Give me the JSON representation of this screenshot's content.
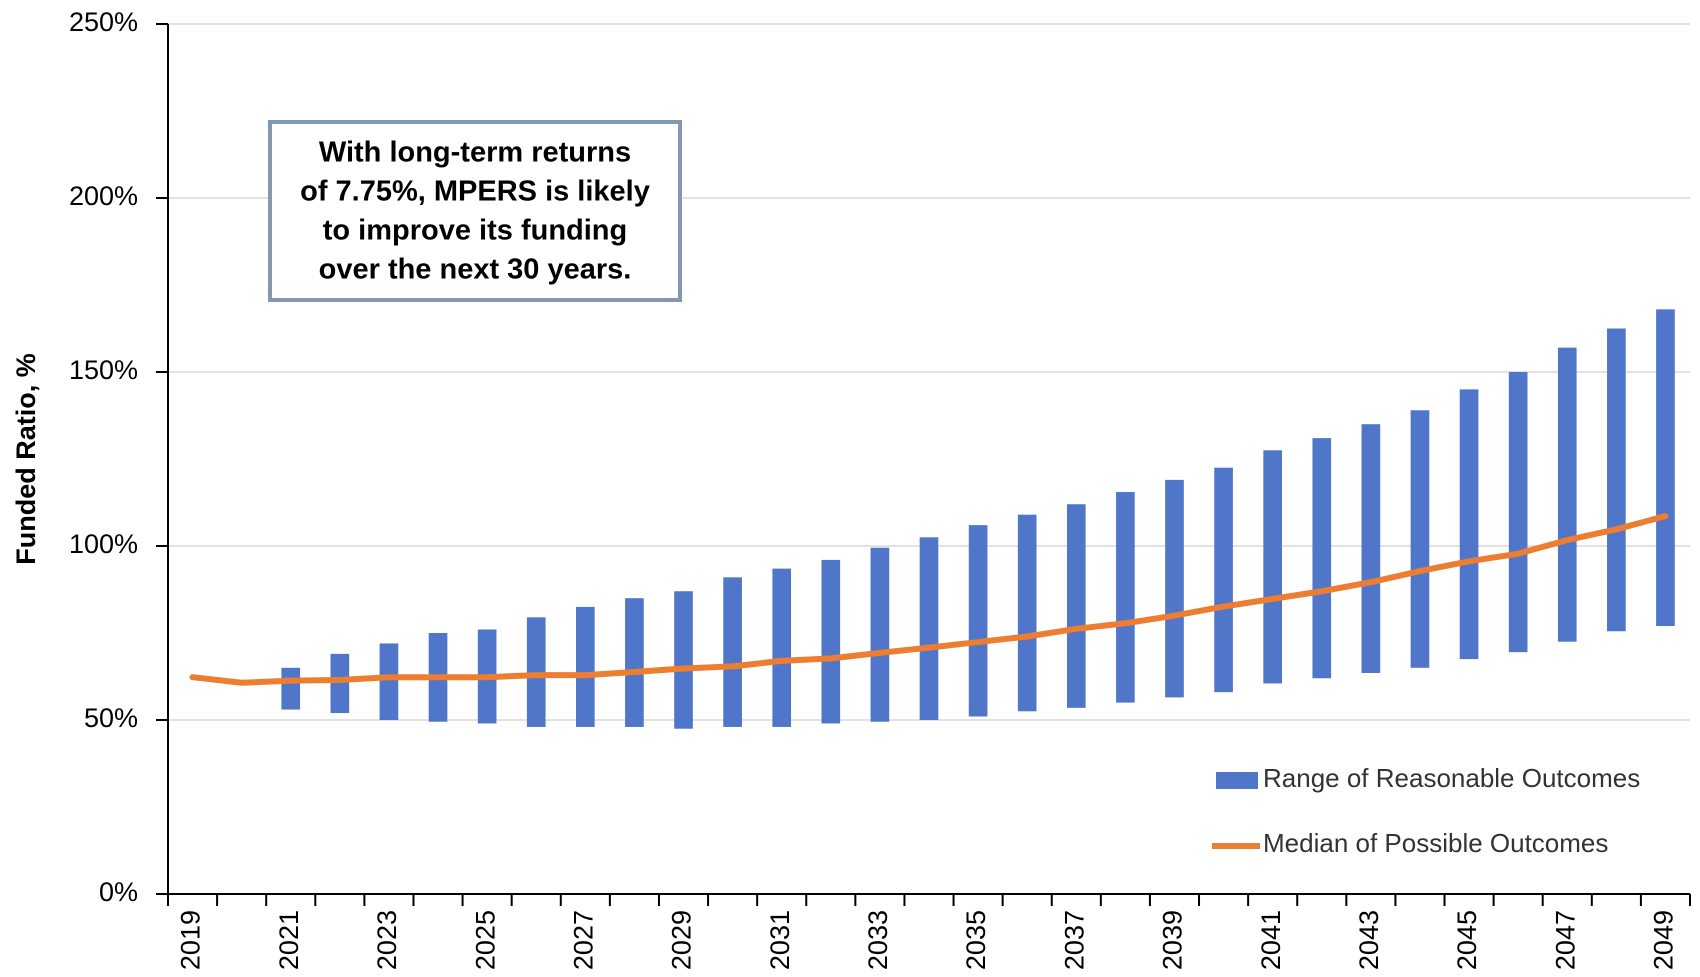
{
  "chart_data": {
    "type": "range-line",
    "y_label": "Funded Ratio, %",
    "annotation": [
      "With long-term returns",
      "of 7.75%, MPERS is likely",
      "to improve its funding",
      "over the next 30 years."
    ],
    "categories": [
      "2019",
      null,
      "2021",
      null,
      "2023",
      null,
      "2025",
      null,
      "2027",
      null,
      "2029",
      null,
      "2031",
      null,
      "2033",
      null,
      "2035",
      null,
      "2037",
      null,
      "2039",
      null,
      "2041",
      null,
      "2043",
      null,
      "2045",
      null,
      "2047",
      null,
      "2049"
    ],
    "series": [
      {
        "name": "Range of Reasonable Outcomes",
        "color": "#4f76c8",
        "low": [
          null,
          null,
          53,
          52,
          50,
          49.5,
          49,
          48,
          48,
          48,
          47.5,
          48,
          48,
          49,
          49.5,
          50,
          51,
          52.5,
          53.5,
          55,
          56.5,
          58,
          60.5,
          62,
          63.5,
          65,
          67.5,
          69.5,
          72.5,
          75.5,
          77
        ],
        "high": [
          null,
          null,
          65,
          69,
          72,
          75,
          76,
          79.5,
          82.5,
          85,
          87,
          91,
          93.5,
          96,
          99.5,
          102.5,
          106,
          109,
          112,
          115.5,
          119,
          122.5,
          127.5,
          131,
          135,
          139,
          145,
          150,
          157,
          162.5,
          168
        ]
      },
      {
        "name": "Median of Possible Outcomes",
        "color": "#ed7d31",
        "values": [
          62.3,
          60.7,
          61.3,
          61.5,
          62.3,
          62.3,
          62.3,
          62.9,
          62.9,
          63.8,
          64.8,
          65.4,
          67,
          67.7,
          69.3,
          70.8,
          72.4,
          74,
          76.2,
          77.8,
          80,
          82.6,
          84.8,
          87,
          89.6,
          92.8,
          95.6,
          97.8,
          101.7,
          104.8,
          108.6
        ]
      }
    ],
    "ylim": [
      0,
      250
    ],
    "yticks": [
      {
        "value": 0,
        "label": "0%"
      },
      {
        "value": 50,
        "label": "50%"
      },
      {
        "value": 100,
        "label": "100%"
      },
      {
        "value": 150,
        "label": "150%"
      },
      {
        "value": 200,
        "label": "200%"
      },
      {
        "value": 250,
        "label": "250%"
      }
    ],
    "grid": true,
    "legend": "lower right"
  }
}
